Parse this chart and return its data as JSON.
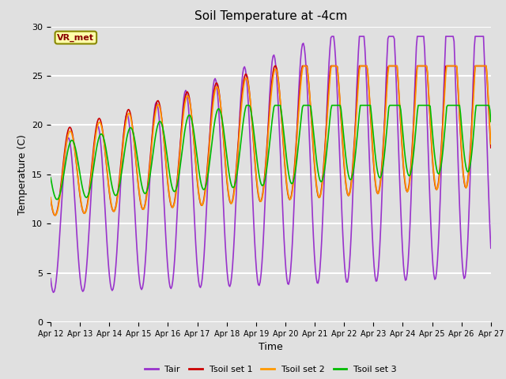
{
  "title": "Soil Temperature at -4cm",
  "xlabel": "Time",
  "ylabel": "Temperature (C)",
  "ylim": [
    0,
    30
  ],
  "background_color": "#e0e0e0",
  "grid_color": "white",
  "annotation_text": "VR_met",
  "annotation_bg": "#ffffaa",
  "annotation_border": "#888800",
  "annotation_text_color": "#880000",
  "tick_labels": [
    "Apr 12",
    "Apr 13",
    "Apr 14",
    "Apr 15",
    "Apr 16",
    "Apr 17",
    "Apr 18",
    "Apr 19",
    "Apr 20",
    "Apr 21",
    "Apr 22",
    "Apr 23",
    "Apr 24",
    "Apr 25",
    "Apr 26",
    "Apr 27"
  ],
  "line_colors": {
    "Tair": "#9933cc",
    "Tsoil1": "#cc0000",
    "Tsoil2": "#ff9900",
    "Tsoil3": "#00bb00"
  },
  "legend_labels": [
    "Tair",
    "Tsoil set 1",
    "Tsoil set 2",
    "Tsoil set 3"
  ],
  "line_width": 1.2,
  "n_points": 480
}
